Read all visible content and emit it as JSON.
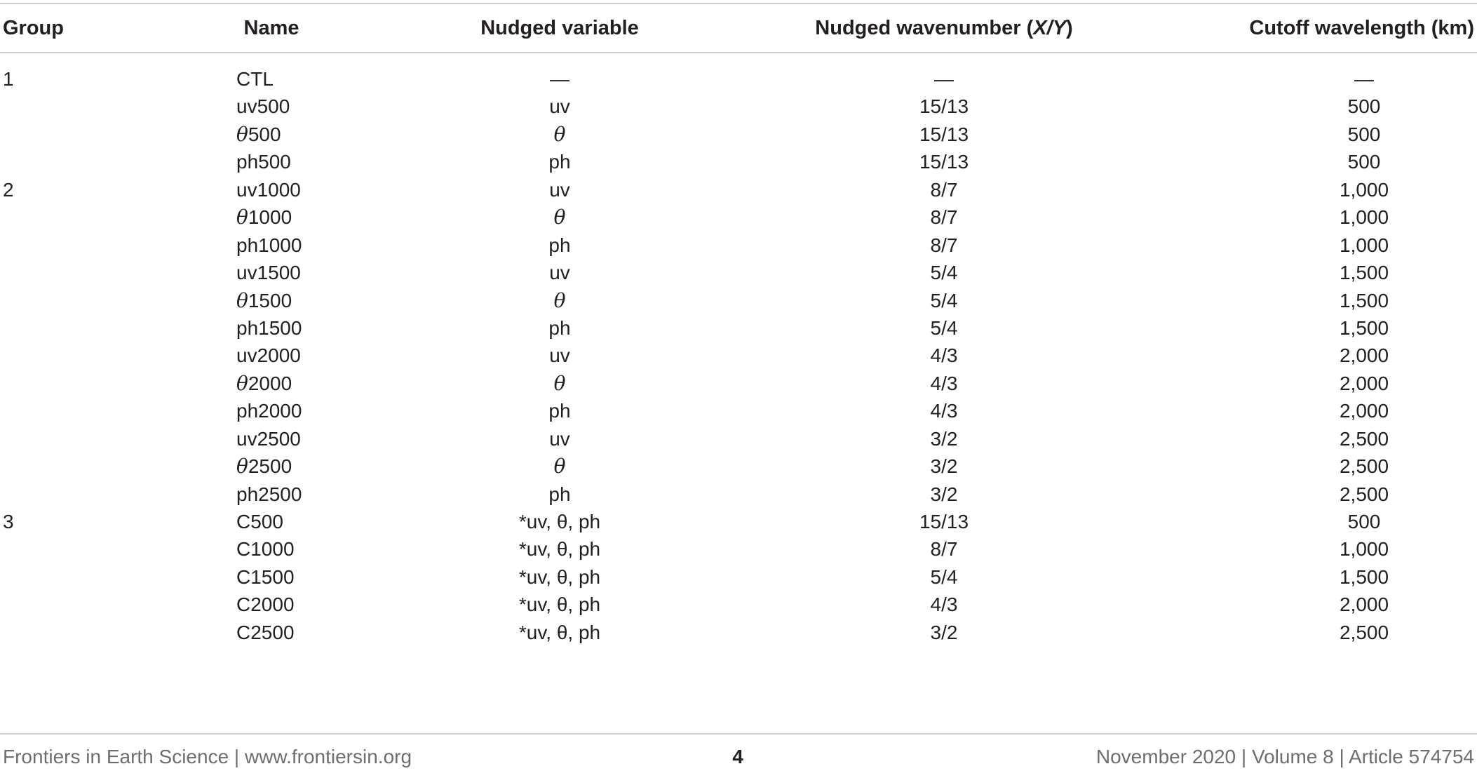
{
  "table": {
    "headers": {
      "group": "Group",
      "name": "Name",
      "variable": "Nudged variable",
      "wavenumber": "Nudged wavenumber (X/Y)",
      "cutoff": "Cutoff wavelength (km)"
    },
    "rows": [
      {
        "group": "1",
        "name": "CTL",
        "variable": "—",
        "wavenumber": "—",
        "cutoff": "—"
      },
      {
        "group": "",
        "name": "uv500",
        "variable": "uv",
        "wavenumber": "15/13",
        "cutoff": "500"
      },
      {
        "group": "",
        "name": "θ500",
        "variable": "θ",
        "wavenumber": "15/13",
        "cutoff": "500"
      },
      {
        "group": "",
        "name": "ph500",
        "variable": "ph",
        "wavenumber": "15/13",
        "cutoff": "500"
      },
      {
        "group": "2",
        "name": "uv1000",
        "variable": "uv",
        "wavenumber": "8/7",
        "cutoff": "1,000"
      },
      {
        "group": "",
        "name": "θ1000",
        "variable": "θ",
        "wavenumber": "8/7",
        "cutoff": "1,000"
      },
      {
        "group": "",
        "name": "ph1000",
        "variable": "ph",
        "wavenumber": "8/7",
        "cutoff": "1,000"
      },
      {
        "group": "",
        "name": "uv1500",
        "variable": "uv",
        "wavenumber": "5/4",
        "cutoff": "1,500"
      },
      {
        "group": "",
        "name": "θ1500",
        "variable": "θ",
        "wavenumber": "5/4",
        "cutoff": "1,500"
      },
      {
        "group": "",
        "name": "ph1500",
        "variable": "ph",
        "wavenumber": "5/4",
        "cutoff": "1,500"
      },
      {
        "group": "",
        "name": "uv2000",
        "variable": "uv",
        "wavenumber": "4/3",
        "cutoff": "2,000"
      },
      {
        "group": "",
        "name": "θ2000",
        "variable": "θ",
        "wavenumber": "4/3",
        "cutoff": "2,000"
      },
      {
        "group": "",
        "name": "ph2000",
        "variable": "ph",
        "wavenumber": "4/3",
        "cutoff": "2,000"
      },
      {
        "group": "",
        "name": "uv2500",
        "variable": "uv",
        "wavenumber": "3/2",
        "cutoff": "2,500"
      },
      {
        "group": "",
        "name": "θ2500",
        "variable": "θ",
        "wavenumber": "3/2",
        "cutoff": "2,500"
      },
      {
        "group": "",
        "name": "ph2500",
        "variable": "ph",
        "wavenumber": "3/2",
        "cutoff": "2,500"
      },
      {
        "group": "3",
        "name": "C500",
        "variable": "*uv, θ, ph",
        "wavenumber": "15/13",
        "cutoff": "500"
      },
      {
        "group": "",
        "name": "C1000",
        "variable": "*uv, θ, ph",
        "wavenumber": "8/7",
        "cutoff": "1,000"
      },
      {
        "group": "",
        "name": "C1500",
        "variable": "*uv, θ, ph",
        "wavenumber": "5/4",
        "cutoff": "1,500"
      },
      {
        "group": "",
        "name": "C2000",
        "variable": "*uv, θ, ph",
        "wavenumber": "4/3",
        "cutoff": "2,000"
      },
      {
        "group": "",
        "name": "C2500",
        "variable": "*uv, θ, ph",
        "wavenumber": "3/2",
        "cutoff": "2,500"
      }
    ]
  },
  "footer": {
    "journal": "Frontiers in Earth Science | www.frontiersin.org",
    "page": "4",
    "issue": "November 2020 | Volume 8 | Article 574754"
  }
}
